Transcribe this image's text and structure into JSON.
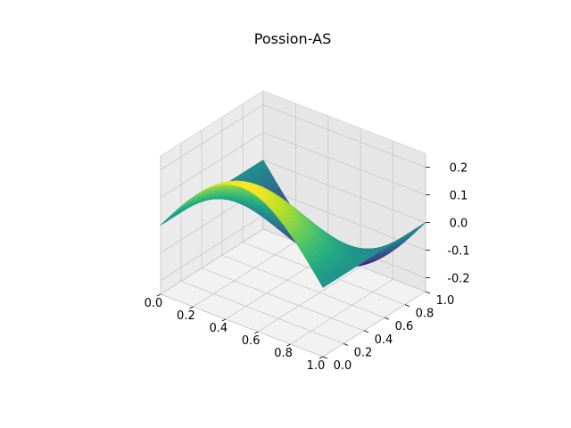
{
  "chart_data": {
    "type": "surface",
    "title": "Possion-AS",
    "function": "0.25*sin(pi*x)*cos(pi*y)",
    "xlim": [
      0,
      1
    ],
    "ylim": [
      0,
      1
    ],
    "zlim": [
      -0.25,
      0.25
    ],
    "x_ticks": [
      "0.0",
      "0.2",
      "0.4",
      "0.6",
      "0.8",
      "1.0"
    ],
    "y_ticks": [
      "0.0",
      "0.2",
      "0.4",
      "0.6",
      "0.8",
      "1.0"
    ],
    "z_ticks": [
      "-0.2",
      "-0.1",
      "0.0",
      "0.1",
      "0.2"
    ],
    "grid": true,
    "colormap": "viridis",
    "grid_resolution": 50
  }
}
